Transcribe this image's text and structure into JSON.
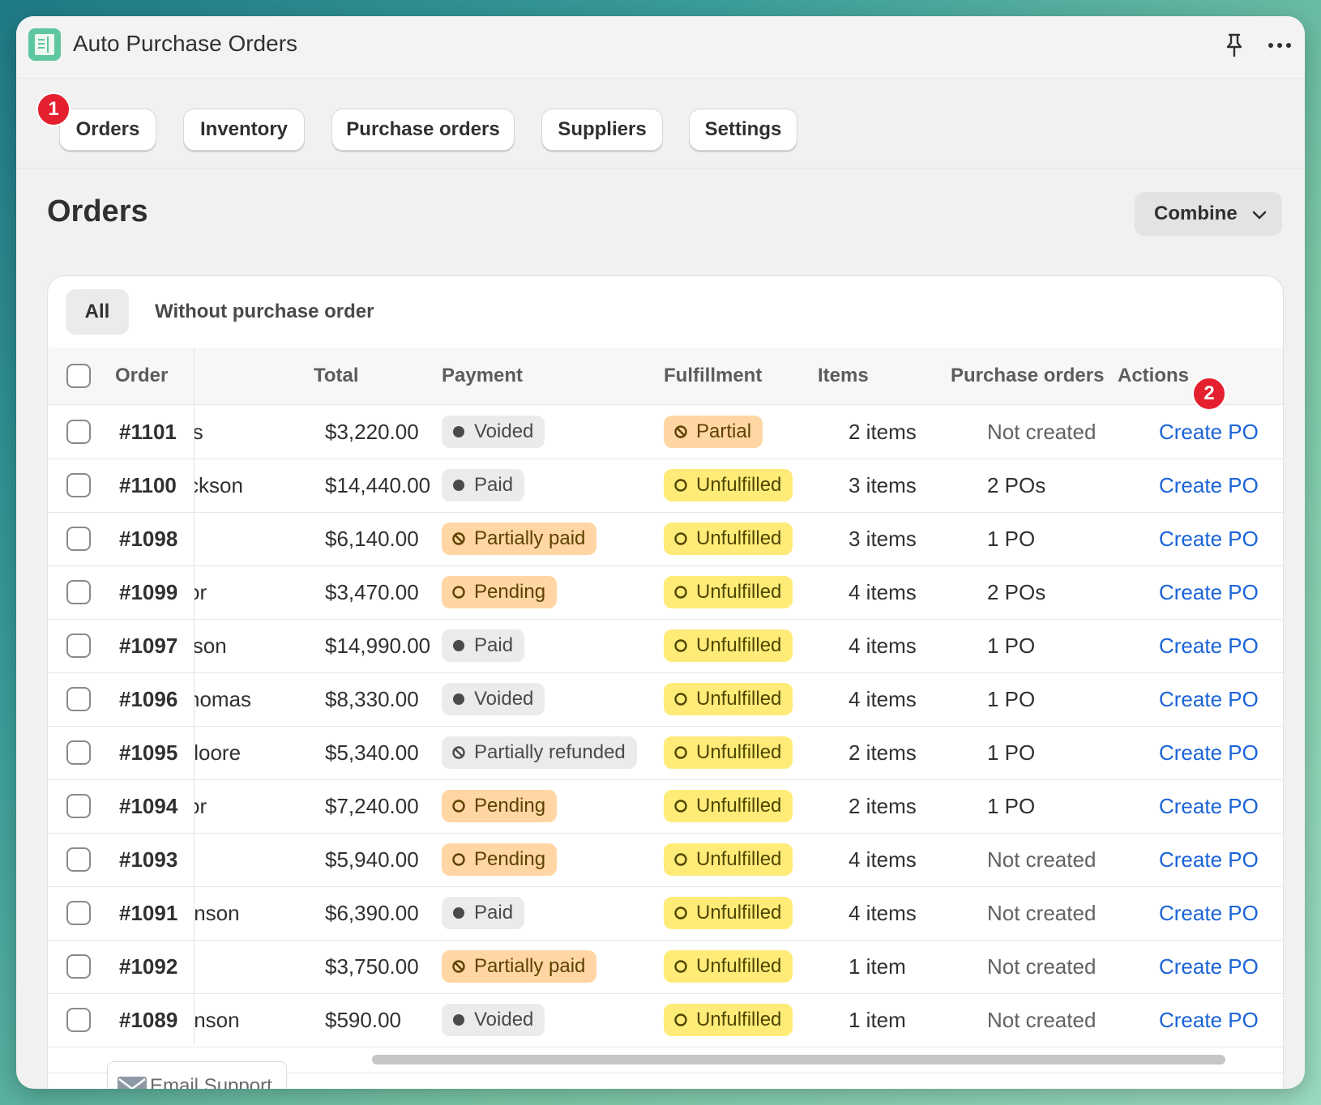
{
  "app": {
    "title": "Auto Purchase Orders"
  },
  "tabs": [
    {
      "label": "Orders"
    },
    {
      "label": "Inventory"
    },
    {
      "label": "Purchase orders"
    },
    {
      "label": "Suppliers"
    },
    {
      "label": "Settings"
    }
  ],
  "badges": {
    "one": "1",
    "two": "2"
  },
  "page": {
    "title": "Orders",
    "combine_label": "Combine"
  },
  "filters": {
    "all": "All",
    "without_po": "Without purchase order"
  },
  "table": {
    "headers": {
      "order": "Order",
      "total": "Total",
      "payment": "Payment",
      "fulfillment": "Fulfillment",
      "items": "Items",
      "purchase_orders": "Purchase orders",
      "actions": "Actions"
    },
    "rows": [
      {
        "order": "#1101",
        "customer": "is",
        "total": "$3,220.00",
        "payment": "Voided",
        "payment_style": "gray",
        "payment_icon": "filled-dot",
        "fulfillment": "Partial",
        "fulfillment_style": "orange",
        "fulfillment_icon": "partial-circle",
        "items": "2 items",
        "purchase_orders": "Not created",
        "action": "Create PO"
      },
      {
        "order": "#1100",
        "customer": "ckson",
        "total": "$14,440.00",
        "payment": "Paid",
        "payment_style": "gray",
        "payment_icon": "filled-dot",
        "fulfillment": "Unfulfilled",
        "fulfillment_style": "yellow",
        "fulfillment_icon": "hollow-circle",
        "items": "3 items",
        "purchase_orders": "2 POs",
        "action": "Create PO"
      },
      {
        "order": "#1098",
        "customer": "",
        "total": "$6,140.00",
        "payment": "Partially paid",
        "payment_style": "orange",
        "payment_icon": "partial-circle",
        "fulfillment": "Unfulfilled",
        "fulfillment_style": "yellow",
        "fulfillment_icon": "hollow-circle",
        "items": "3 items",
        "purchase_orders": "1 PO",
        "action": "Create PO"
      },
      {
        "order": "#1099",
        "customer": "or",
        "total": "$3,470.00",
        "payment": "Pending",
        "payment_style": "orange",
        "payment_icon": "hollow-circle",
        "fulfillment": "Unfulfilled",
        "fulfillment_style": "yellow",
        "fulfillment_icon": "hollow-circle",
        "items": "4 items",
        "purchase_orders": "2 POs",
        "action": "Create PO"
      },
      {
        "order": "#1097",
        "customer": "lson",
        "total": "$14,990.00",
        "payment": "Paid",
        "payment_style": "gray",
        "payment_icon": "filled-dot",
        "fulfillment": "Unfulfilled",
        "fulfillment_style": "yellow",
        "fulfillment_icon": "hollow-circle",
        "items": "4 items",
        "purchase_orders": "1 PO",
        "action": "Create PO"
      },
      {
        "order": "#1096",
        "customer": "homas",
        "total": "$8,330.00",
        "payment": "Voided",
        "payment_style": "gray",
        "payment_icon": "filled-dot",
        "fulfillment": "Unfulfilled",
        "fulfillment_style": "yellow",
        "fulfillment_icon": "hollow-circle",
        "items": "4 items",
        "purchase_orders": "1 PO",
        "action": "Create PO"
      },
      {
        "order": "#1095",
        "customer": "/loore",
        "total": "$5,340.00",
        "payment": "Partially refunded",
        "payment_style": "gray",
        "payment_icon": "partial-circle",
        "fulfillment": "Unfulfilled",
        "fulfillment_style": "yellow",
        "fulfillment_icon": "hollow-circle",
        "items": "2 items",
        "purchase_orders": "1 PO",
        "action": "Create PO"
      },
      {
        "order": "#1094",
        "customer": "or",
        "total": "$7,240.00",
        "payment": "Pending",
        "payment_style": "orange",
        "payment_icon": "hollow-circle",
        "fulfillment": "Unfulfilled",
        "fulfillment_style": "yellow",
        "fulfillment_icon": "hollow-circle",
        "items": "2 items",
        "purchase_orders": "1 PO",
        "action": "Create PO"
      },
      {
        "order": "#1093",
        "customer": "",
        "total": "$5,940.00",
        "payment": "Pending",
        "payment_style": "orange",
        "payment_icon": "hollow-circle",
        "fulfillment": "Unfulfilled",
        "fulfillment_style": "yellow",
        "fulfillment_icon": "hollow-circle",
        "items": "4 items",
        "purchase_orders": "Not created",
        "action": "Create PO"
      },
      {
        "order": "#1091",
        "customer": "ınson",
        "total": "$6,390.00",
        "payment": "Paid",
        "payment_style": "gray",
        "payment_icon": "filled-dot",
        "fulfillment": "Unfulfilled",
        "fulfillment_style": "yellow",
        "fulfillment_icon": "hollow-circle",
        "items": "4 items",
        "purchase_orders": "Not created",
        "action": "Create PO"
      },
      {
        "order": "#1092",
        "customer": "",
        "total": "$3,750.00",
        "payment": "Partially paid",
        "payment_style": "orange",
        "payment_icon": "partial-circle",
        "fulfillment": "Unfulfilled",
        "fulfillment_style": "yellow",
        "fulfillment_icon": "hollow-circle",
        "items": "1 item",
        "purchase_orders": "Not created",
        "action": "Create PO"
      },
      {
        "order": "#1089",
        "customer": "ınson",
        "total": "$590.00",
        "payment": "Voided",
        "payment_style": "gray",
        "payment_icon": "filled-dot",
        "fulfillment": "Unfulfilled",
        "fulfillment_style": "yellow",
        "fulfillment_icon": "hollow-circle",
        "items": "1 item",
        "purchase_orders": "Not created",
        "action": "Create PO"
      }
    ]
  },
  "support": {
    "label": "Email Support"
  },
  "colors": {
    "link": "#1a63d8",
    "badge": "#e5202e",
    "pill_gray": "#ebebeb",
    "pill_orange": "#ffd6a4",
    "pill_yellow": "#ffeb78"
  }
}
